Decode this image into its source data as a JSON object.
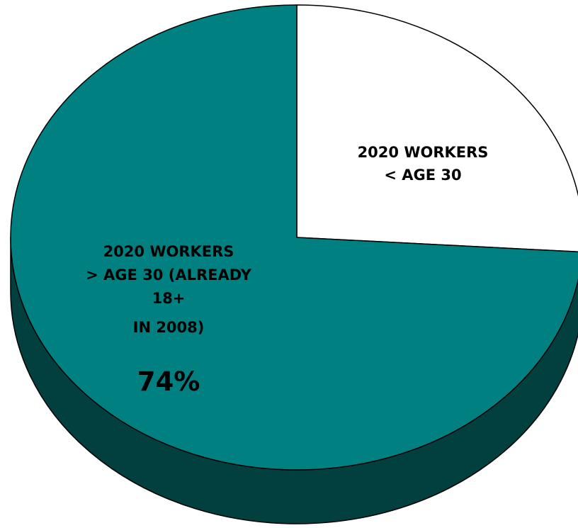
{
  "chart_data": {
    "type": "pie",
    "style": "3d",
    "title": "",
    "legend": "none",
    "slices": [
      {
        "label_lines": [
          "2020 WORKERS",
          "< AGE 30"
        ],
        "value": 26,
        "value_label": "",
        "color": "#ffffff",
        "side_color": "#ffffff"
      },
      {
        "label_lines": [
          "2020 WORKERS",
          "> AGE 30 (ALREADY",
          "18+",
          "IN 2008)"
        ],
        "value": 74,
        "value_label": "74%",
        "color": "#008080",
        "side_color": "#024040"
      }
    ]
  }
}
